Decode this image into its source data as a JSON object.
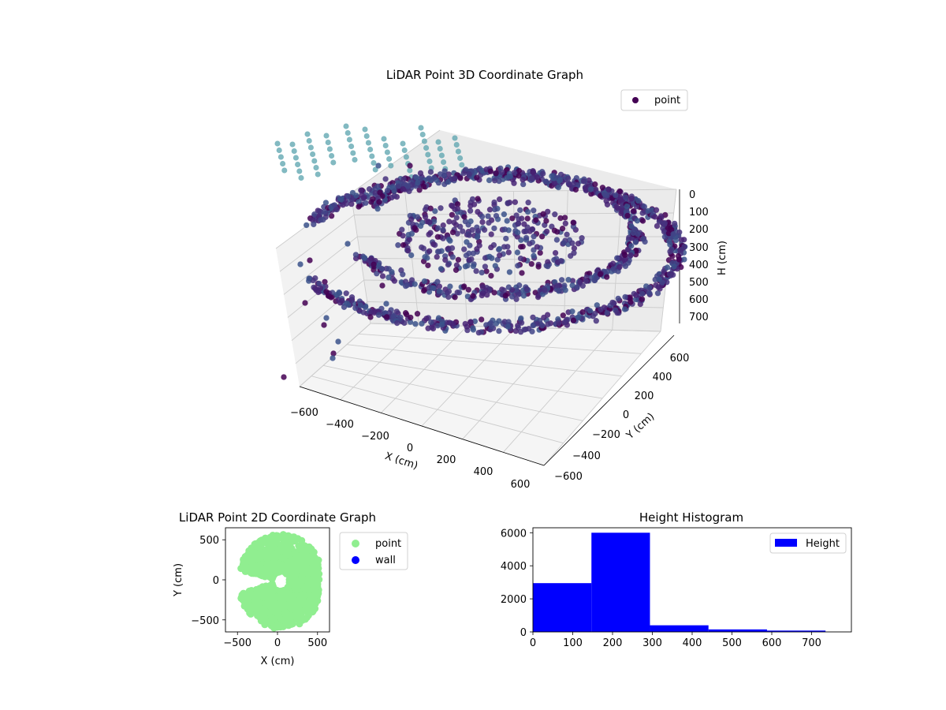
{
  "colors": {
    "viridis_dark": "#440154",
    "viridis_mid": "#3b528b",
    "viridis_teal": "#5ec9c2",
    "point_green": "#90ee90",
    "wall_blue": "#0000ff",
    "hist_blue": "#0000ff",
    "pane": "#f2f2f2",
    "grid": "#cccccc"
  },
  "chart_data": [
    {
      "type": "scatter",
      "projection": "3d",
      "title": "LiDAR Point 3D Coordinate Graph",
      "xlabel": "X (cm)",
      "ylabel": "Y (cm)",
      "zlabel": "H (cm)",
      "xticks": [
        "−600",
        "−400",
        "−200",
        "0",
        "200",
        "400",
        "600"
      ],
      "yticks": [
        "−600",
        "−400",
        "−200",
        "0",
        "200",
        "400",
        "600"
      ],
      "zticks": [
        "0",
        "100",
        "200",
        "300",
        "400",
        "500",
        "600",
        "700"
      ],
      "xlim": [
        -650,
        650
      ],
      "ylim": [
        -650,
        650
      ],
      "zlim": [
        0,
        750
      ],
      "z_inverted": true,
      "legend": {
        "entries": [
          {
            "label": "point",
            "color": "#440154"
          }
        ],
        "placement": "top-right"
      },
      "colormap": "viridis",
      "point_cloud": {
        "description_shape": "ring",
        "ring_x_range": [
          -400,
          500
        ],
        "ring_y_range": [
          -600,
          500
        ],
        "ring_height_range": [
          150,
          300
        ],
        "teal_columns_height_range": [
          600,
          750
        ]
      }
    },
    {
      "type": "scatter",
      "title": "LiDAR Point 2D Coordinate Graph",
      "xlabel": "X (cm)",
      "ylabel": "Y (cm)",
      "xticks": [
        "−500",
        "0",
        "500"
      ],
      "yticks": [
        "−500",
        "0",
        "500"
      ],
      "xlim": [
        -650,
        650
      ],
      "ylim": [
        -650,
        650
      ],
      "legend": {
        "entries": [
          {
            "label": "point",
            "color": "#90ee90"
          },
          {
            "label": "wall",
            "color": "#0000ff"
          }
        ],
        "placement": "outside-right"
      }
    },
    {
      "type": "bar",
      "title": "Height Histogram",
      "xlabel": "",
      "ylabel": "",
      "bin_edges": [
        0,
        147,
        294,
        441,
        588,
        735
      ],
      "values": [
        2950,
        6000,
        400,
        150,
        80
      ],
      "xticks": [
        "0",
        "100",
        "200",
        "300",
        "400",
        "500",
        "600",
        "700"
      ],
      "yticks": [
        "0",
        "2000",
        "4000",
        "6000"
      ],
      "xlim": [
        0,
        800
      ],
      "ylim": [
        0,
        6300
      ],
      "legend": {
        "entries": [
          {
            "label": "Height",
            "color": "#0000ff"
          }
        ],
        "placement": "top-right"
      }
    }
  ]
}
